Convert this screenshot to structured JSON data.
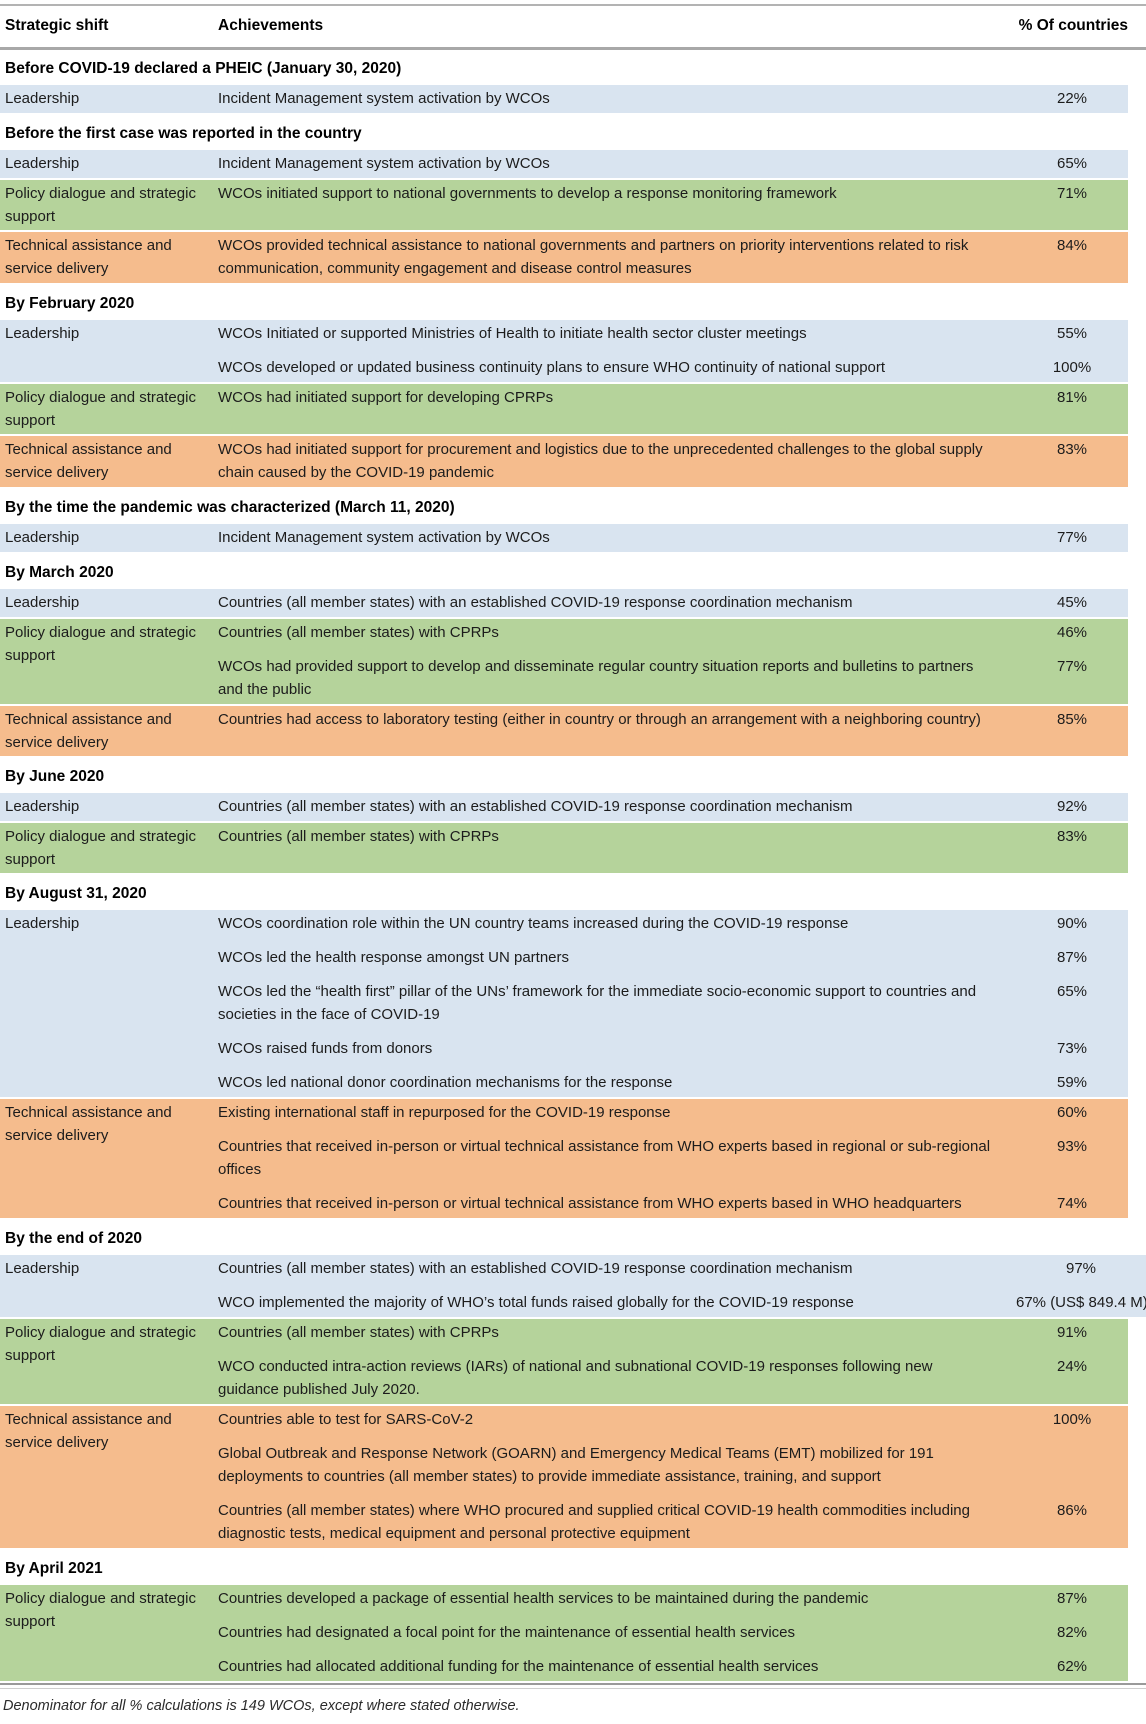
{
  "table": {
    "columns": [
      "Strategic shift",
      "Achievements",
      "% Of countries"
    ],
    "footnote": "Denominator for all % calculations is 149 WCOs, except where stated otherwise.",
    "colors": {
      "leadership_row": "#d9e4f0",
      "policy_row": "#b5d39b",
      "technical_row": "#f5bc8d",
      "rule_gray": "#a8a8a8"
    },
    "strategic_shift_labels": {
      "leadership": "Leadership",
      "policy": "Policy dialogue and strategic support",
      "technical": "Technical assistance and service delivery"
    },
    "sections": [
      {
        "title": "Before COVID-19 declared a PHEIC (January 30, 2020)",
        "blocks": [
          {
            "type": "leadership",
            "label": "Leadership",
            "items": [
              {
                "text": "Incident Management system activation by WCOs",
                "pct": "22%"
              }
            ]
          }
        ]
      },
      {
        "title": "Before the first case was reported in the country",
        "blocks": [
          {
            "type": "leadership",
            "label": "Leadership",
            "items": [
              {
                "text": "Incident Management system activation by WCOs",
                "pct": "65%"
              }
            ]
          },
          {
            "type": "policy",
            "label": "Policy dialogue and strategic support",
            "items": [
              {
                "text": "WCOs initiated support to national governments to develop a response monitoring framework",
                "pct": "71%"
              }
            ]
          },
          {
            "type": "technical",
            "label": "Technical assistance and service delivery",
            "items": [
              {
                "text": "WCOs provided technical assistance to national governments and partners on priority interventions related to risk communication, community engagement and disease control measures",
                "pct": "84%"
              }
            ]
          }
        ]
      },
      {
        "title": "By February 2020",
        "blocks": [
          {
            "type": "leadership",
            "label": "Leadership",
            "items": [
              {
                "text": "WCOs Initiated or supported Ministries of Health to initiate health sector cluster meetings",
                "pct": "55%"
              },
              {
                "text": "WCOs developed or updated business continuity plans to ensure WHO continuity of national support",
                "pct": "100%"
              }
            ]
          },
          {
            "type": "policy",
            "label": "Policy dialogue and strategic support",
            "items": [
              {
                "text": "WCOs had initiated support for developing CPRPs",
                "pct": "81%"
              }
            ]
          },
          {
            "type": "technical",
            "label": "Technical assistance and service delivery",
            "items": [
              {
                "text": "WCOs had initiated support for procurement and logistics due to the unprecedented challenges to the global supply chain caused by the COVID-19 pandemic",
                "pct": "83%"
              }
            ]
          }
        ]
      },
      {
        "title": "By the time the pandemic was characterized (March 11, 2020)",
        "blocks": [
          {
            "type": "leadership",
            "label": "Leadership",
            "items": [
              {
                "text": "Incident Management system activation by WCOs",
                "pct": "77%"
              }
            ]
          }
        ]
      },
      {
        "title": "By March 2020",
        "blocks": [
          {
            "type": "leadership",
            "label": "Leadership",
            "items": [
              {
                "text": "Countries (all member states) with an established COVID-19 response coordination mechanism",
                "pct": "45%"
              }
            ]
          },
          {
            "type": "policy",
            "label": "Policy dialogue and strategic support",
            "items": [
              {
                "text": "Countries (all member states) with CPRPs",
                "pct": "46%"
              },
              {
                "text": "WCOs had provided support to develop and disseminate regular country situation reports and bulletins to partners and the public",
                "pct": "77%"
              }
            ]
          },
          {
            "type": "technical",
            "label": "Technical assistance and service delivery",
            "items": [
              {
                "text": "Countries had access to laboratory testing (either in country or through an arrangement with a neighboring country)",
                "pct": "85%"
              }
            ]
          }
        ]
      },
      {
        "title": "By June 2020",
        "blocks": [
          {
            "type": "leadership",
            "label": "Leadership",
            "items": [
              {
                "text": "Countries (all member states) with an established COVID-19 response coordination mechanism",
                "pct": "92%"
              }
            ]
          },
          {
            "type": "policy",
            "label": "Policy dialogue and strategic support",
            "items": [
              {
                "text": "Countries (all member states) with CPRPs",
                "pct": "83%"
              }
            ]
          }
        ]
      },
      {
        "title": "By August 31, 2020",
        "blocks": [
          {
            "type": "leadership",
            "label": "Leadership",
            "items": [
              {
                "text": "WCOs coordination role within the UN country teams increased during the COVID-19 response",
                "pct": "90%"
              },
              {
                "text": "WCOs led the health response amongst UN partners",
                "pct": "87%"
              },
              {
                "text": "WCOs led the “health first” pillar of the UNs’ framework for the immediate socio-economic support to countries and societies in the face of COVID-19",
                "pct": "65%"
              },
              {
                "text": "WCOs raised funds from donors",
                "pct": "73%"
              },
              {
                "text": "WCOs led national donor coordination mechanisms for the response",
                "pct": "59%"
              }
            ]
          },
          {
            "type": "technical",
            "label": "Technical assistance and service delivery",
            "items": [
              {
                "text": "Existing international staff in repurposed for the COVID-19 response",
                "pct": "60%"
              },
              {
                "text": "Countries that received in-person or virtual technical assistance from WHO experts based in regional or sub-regional offices",
                "pct": "93%"
              },
              {
                "text": "Countries that received in-person or virtual technical assistance from WHO experts based in WHO headquarters",
                "pct": "74%"
              }
            ]
          }
        ]
      },
      {
        "title": "By the end of 2020",
        "blocks": [
          {
            "type": "leadership",
            "wide": true,
            "label": "Leadership",
            "items": [
              {
                "text": "Countries (all member states) with an established COVID-19 response coordination mechanism",
                "pct": "97%"
              },
              {
                "text": "WCO implemented the majority of WHO’s total funds raised globally for the COVID-19 response",
                "pct": "67% (US$ 849.4 M)"
              }
            ]
          },
          {
            "type": "policy",
            "label": "Policy dialogue and strategic support",
            "items": [
              {
                "text": "Countries (all member states) with CPRPs",
                "pct": "91%"
              },
              {
                "text": "WCO conducted intra-action reviews (IARs) of national and subnational COVID-19 responses following new guidance published July 2020.",
                "pct": "24%"
              }
            ]
          },
          {
            "type": "technical",
            "label": "Technical assistance and service delivery",
            "items": [
              {
                "text": "Countries able to test for SARS-CoV-2",
                "pct": "100%"
              },
              {
                "text": "Global Outbreak and Response Network (GOARN) and Emergency Medical Teams (EMT) mobilized for 191 deployments to countries (all member states) to provide immediate assistance, training, and support",
                "pct": ""
              },
              {
                "text": "Countries (all member states) where WHO procured and supplied critical COVID-19 health commodities including diagnostic tests, medical equipment and personal protective equipment",
                "pct": "86%"
              }
            ]
          }
        ]
      },
      {
        "title": "By April 2021",
        "blocks": [
          {
            "type": "policy",
            "label": "Policy dialogue and strategic support",
            "items": [
              {
                "text": "Countries developed a package of essential health services to be maintained during the pandemic",
                "pct": "87%"
              },
              {
                "text": "Countries had designated a focal point for the maintenance of essential health services",
                "pct": "82%"
              },
              {
                "text": "Countries had allocated additional funding for the maintenance of essential health services",
                "pct": "62%"
              }
            ]
          }
        ]
      }
    ]
  }
}
